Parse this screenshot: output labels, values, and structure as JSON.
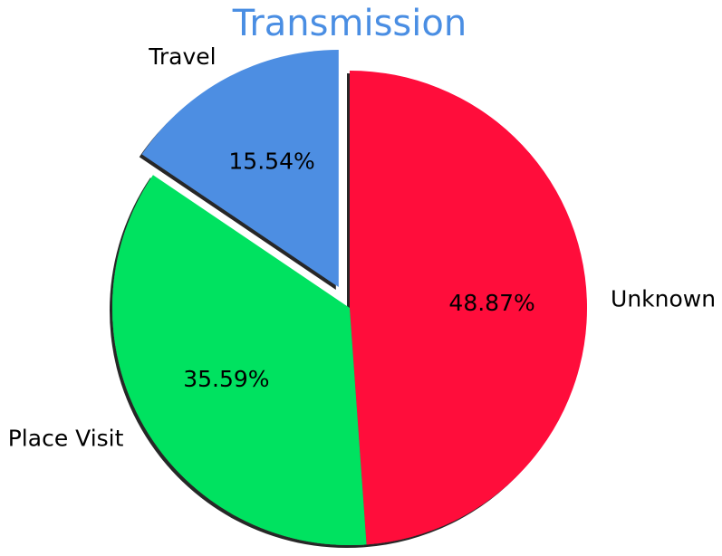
{
  "chart_data": {
    "type": "pie",
    "title": "Transmission",
    "title_color": "#4a8ee3",
    "labels": [
      "Unknown",
      "Place Visit",
      "Travel"
    ],
    "values": [
      48.87,
      35.59,
      15.54
    ],
    "value_labels": [
      "48.87%",
      "35.59%",
      "15.54%"
    ],
    "colors": [
      "#ff073a",
      "#00e260",
      "#4d8ee2"
    ],
    "exploded": [
      false,
      false,
      true
    ],
    "start_angle_deg": 90,
    "direction": "clockwise",
    "shadow": true
  }
}
